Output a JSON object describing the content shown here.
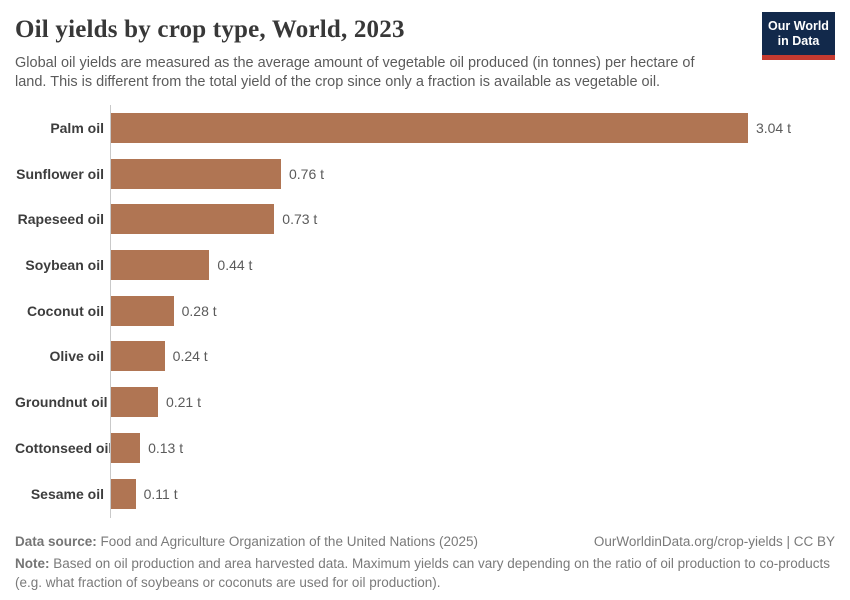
{
  "header": {
    "title": "Oil yields by crop type, World, 2023",
    "subtitle": "Global oil yields are measured as the average amount of vegetable oil produced (in tonnes) per hectare of land. This is different from the total yield of the crop since only a fraction is available as vegetable oil.",
    "logo": {
      "line1": "Our World",
      "line2": "in Data",
      "bg_color": "#12294B",
      "accent_color": "#C53A30"
    }
  },
  "chart_data": {
    "type": "bar",
    "orientation": "horizontal",
    "title": "Oil yields by crop type, World, 2023",
    "categories": [
      "Palm oil",
      "Sunflower oil",
      "Rapeseed oil",
      "Soybean oil",
      "Coconut oil",
      "Olive oil",
      "Groundnut oil",
      "Cottonseed oil",
      "Sesame oil"
    ],
    "values": [
      3.04,
      0.76,
      0.73,
      0.44,
      0.28,
      0.24,
      0.21,
      0.13,
      0.11
    ],
    "value_labels": [
      "3.04 t",
      "0.76 t",
      "0.73 t",
      "0.44 t",
      "0.28 t",
      "0.24 t",
      "0.21 t",
      "0.13 t",
      "0.11 t"
    ],
    "xlim": [
      0,
      3.04
    ],
    "bar_color": "#B07553",
    "grid": false,
    "legend": false
  },
  "footer": {
    "data_source_label": "Data source:",
    "data_source_text": "Food and Agriculture Organization of the United Nations (2025)",
    "link_text": "OurWorldinData.org/crop-yields | CC BY",
    "note_label": "Note:",
    "note_text": "Based on oil production and area harvested data. Maximum yields can vary depending on the ratio of oil production to co-products (e.g. what fraction of soybeans or coconuts are used for oil production)."
  }
}
